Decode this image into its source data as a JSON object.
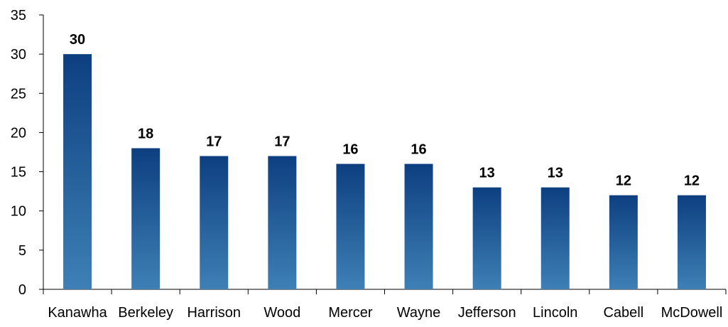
{
  "chart_data": {
    "type": "bar",
    "title": "",
    "xlabel": "",
    "ylabel": "",
    "categories": [
      "Kanawha",
      "Berkeley",
      "Harrison",
      "Wood",
      "Mercer",
      "Wayne",
      "Jefferson",
      "Lincoln",
      "Cabell",
      "McDowell"
    ],
    "values": [
      30,
      18,
      17,
      17,
      16,
      16,
      13,
      13,
      12,
      12
    ],
    "ylim": [
      0,
      35
    ],
    "yticks": [
      0,
      5,
      10,
      15,
      20,
      25,
      30,
      35
    ],
    "grid": false,
    "legend": "none",
    "data_labels": true,
    "colors": {
      "bar_top": "#0d3f80",
      "bar_bottom": "#3e80b5",
      "axis": "#000000"
    }
  }
}
